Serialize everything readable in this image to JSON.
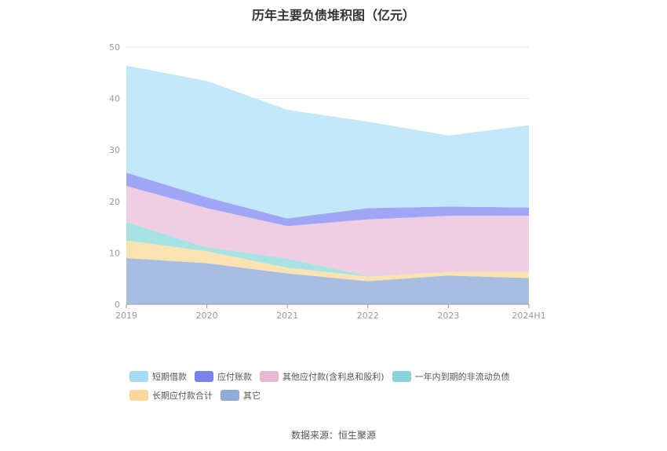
{
  "chart_data": {
    "type": "area",
    "title": "历年主要负债堆积图（亿元）",
    "categories": [
      "2019",
      "2020",
      "2021",
      "2022",
      "2023",
      "2024H1"
    ],
    "ylim": [
      0,
      50
    ],
    "yticks": [
      0,
      10,
      20,
      30,
      40,
      50
    ],
    "grid": true,
    "legend_position": "bottom",
    "series": [
      {
        "name": "其它",
        "color": "#a7bde2",
        "values": [
          9.0,
          8.0,
          6.0,
          4.5,
          5.6,
          5.1
        ]
      },
      {
        "name": "长期应付款合计",
        "color": "#fbe2b1",
        "values": [
          3.4,
          2.3,
          1.1,
          0.9,
          0.7,
          1.2
        ]
      },
      {
        "name": "一年内到期的非流动负债",
        "color": "#a9e2e3",
        "values": [
          3.6,
          0.8,
          1.8,
          0.1,
          0.0,
          0.0
        ]
      },
      {
        "name": "其他应付款(含利息和股利)",
        "color": "#efcde3",
        "values": [
          7.0,
          7.6,
          6.3,
          11.0,
          10.9,
          10.9
        ]
      },
      {
        "name": "应付账款",
        "color": "#a0a6f6",
        "values": [
          2.6,
          2.1,
          1.5,
          2.2,
          1.8,
          1.6
        ]
      },
      {
        "name": "短期借款",
        "color": "#c3e8f9",
        "values": [
          20.8,
          22.6,
          21.1,
          16.8,
          13.8,
          16.0
        ]
      }
    ]
  },
  "legend": {
    "items": [
      {
        "label": "短期借款",
        "color": "#a6dcf7"
      },
      {
        "label": "应付账款",
        "color": "#7b81ee"
      },
      {
        "label": "其他应付款(含利息和股利)",
        "color": "#e8b6d6"
      },
      {
        "label": "一年内到期的非流动负债",
        "color": "#8ad6d7"
      },
      {
        "label": "长期应付款合计",
        "color": "#fbd69a"
      },
      {
        "label": "其它",
        "color": "#8eabd9"
      }
    ]
  },
  "source": "数据来源：恒生聚源"
}
